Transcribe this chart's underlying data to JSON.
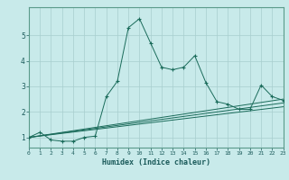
{
  "xlabel": "Humidex (Indice chaleur)",
  "ylabel": "",
  "bg_color": "#c8eaea",
  "line_color": "#1a6b5a",
  "grid_color": "#a8cece",
  "xlim": [
    0,
    23
  ],
  "ylim": [
    0.6,
    6.1
  ],
  "yticks": [
    1,
    2,
    3,
    4,
    5
  ],
  "xticks": [
    0,
    1,
    2,
    3,
    4,
    5,
    6,
    7,
    8,
    9,
    10,
    11,
    12,
    13,
    14,
    15,
    16,
    17,
    18,
    19,
    20,
    21,
    22,
    23
  ],
  "series": [
    {
      "x": [
        0,
        1,
        2,
        3,
        4,
        5,
        6,
        7,
        8,
        9,
        10,
        11,
        12,
        13,
        14,
        15,
        16,
        17,
        18,
        19,
        20,
        21,
        22,
        23
      ],
      "y": [
        1.0,
        1.2,
        0.9,
        0.85,
        0.85,
        1.0,
        1.05,
        2.6,
        3.2,
        5.3,
        5.65,
        4.7,
        3.75,
        3.65,
        3.75,
        4.2,
        3.15,
        2.4,
        2.3,
        2.1,
        2.1,
        3.05,
        2.6,
        2.45
      ]
    },
    {
      "x": [
        0,
        23
      ],
      "y": [
        1.0,
        2.5
      ]
    },
    {
      "x": [
        0,
        23
      ],
      "y": [
        1.0,
        2.35
      ]
    },
    {
      "x": [
        0,
        23
      ],
      "y": [
        1.0,
        2.2
      ]
    }
  ]
}
